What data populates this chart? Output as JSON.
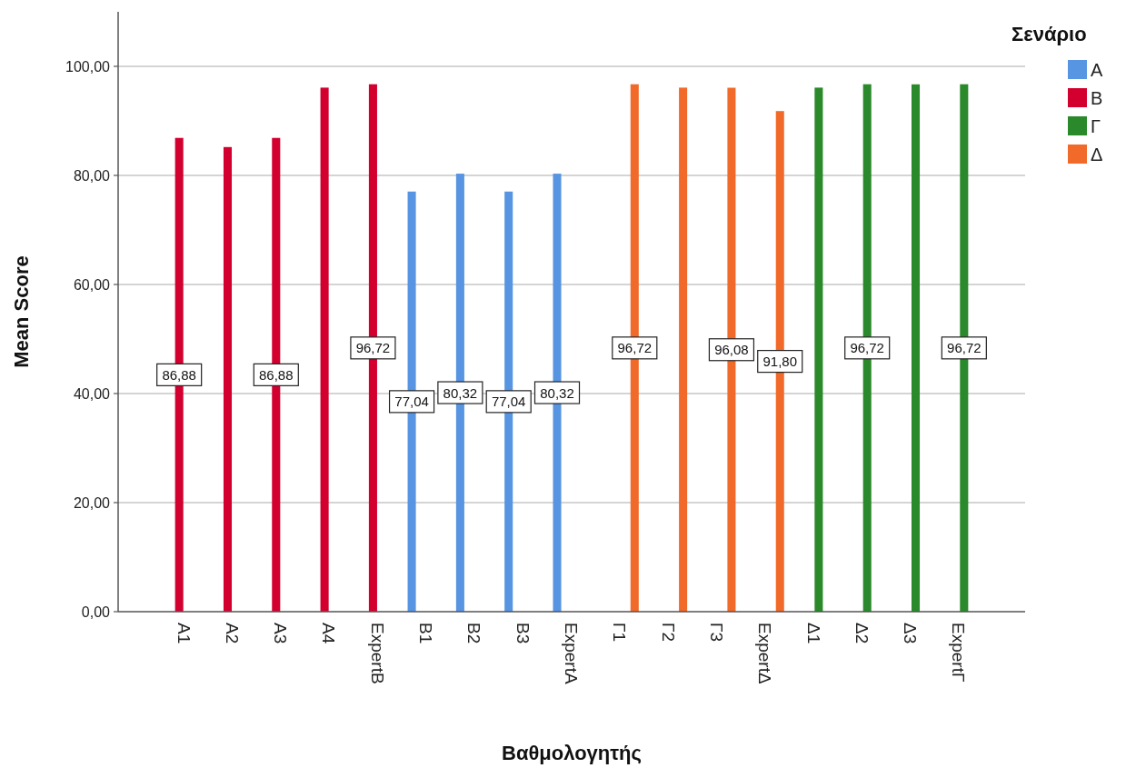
{
  "chart_data": {
    "type": "bar",
    "xlabel": "Βαθμολογητής",
    "ylabel": "Mean Score",
    "legend_title": "Σενάριο",
    "categories": [
      "Α1",
      "Α2",
      "Α3",
      "Α4",
      "ExpertΒ",
      "Β1",
      "Β2",
      "Β3",
      "ExpertΑ",
      "Γ1",
      "Γ2",
      "Γ3",
      "ExpertΔ",
      "Δ1",
      "Δ2",
      "Δ3",
      "ExpertΓ"
    ],
    "series": [
      {
        "name": "Α",
        "color": "#5795e2",
        "values": [
          null,
          null,
          null,
          null,
          null,
          77.04,
          80.32,
          77.04,
          80.32,
          null,
          null,
          null,
          null,
          null,
          null,
          null,
          null
        ],
        "value_labels": [
          null,
          null,
          null,
          null,
          null,
          "77,04",
          "80,32",
          "77,04",
          "80,32",
          null,
          null,
          null,
          null,
          null,
          null,
          null,
          null
        ]
      },
      {
        "name": "Β",
        "color": "#d3002f",
        "values": [
          86.88,
          85.2,
          86.88,
          96.1,
          96.72,
          null,
          null,
          null,
          null,
          null,
          null,
          null,
          null,
          null,
          null,
          null,
          null
        ],
        "value_labels": [
          "86,88",
          null,
          "86,88",
          null,
          "96,72",
          null,
          null,
          null,
          null,
          null,
          null,
          null,
          null,
          null,
          null,
          null,
          null
        ]
      },
      {
        "name": "Γ",
        "color": "#2a892a",
        "values": [
          null,
          null,
          null,
          null,
          null,
          null,
          null,
          null,
          null,
          null,
          null,
          null,
          null,
          96.1,
          96.72,
          96.7,
          96.72
        ],
        "value_labels": [
          null,
          null,
          null,
          null,
          null,
          null,
          null,
          null,
          null,
          null,
          null,
          null,
          null,
          null,
          "96,72",
          null,
          "96,72"
        ]
      },
      {
        "name": "Δ",
        "color": "#f26a29",
        "values": [
          null,
          null,
          null,
          null,
          null,
          null,
          null,
          null,
          null,
          96.72,
          96.1,
          96.08,
          91.8,
          null,
          null,
          null,
          null
        ],
        "value_labels": [
          null,
          null,
          null,
          null,
          null,
          null,
          null,
          null,
          null,
          "96,72",
          null,
          "96,08",
          "91,80",
          null,
          null,
          null,
          null
        ]
      }
    ],
    "ylim": [
      0,
      110
    ],
    "yticks": [
      {
        "value": 0,
        "label": "0,00"
      },
      {
        "value": 20,
        "label": "20,00"
      },
      {
        "value": 40,
        "label": "40,00"
      },
      {
        "value": 60,
        "label": "60,00"
      },
      {
        "value": 80,
        "label": "80,00"
      },
      {
        "value": 100,
        "label": "100,00"
      }
    ],
    "grid": "y",
    "legend": "top right"
  }
}
